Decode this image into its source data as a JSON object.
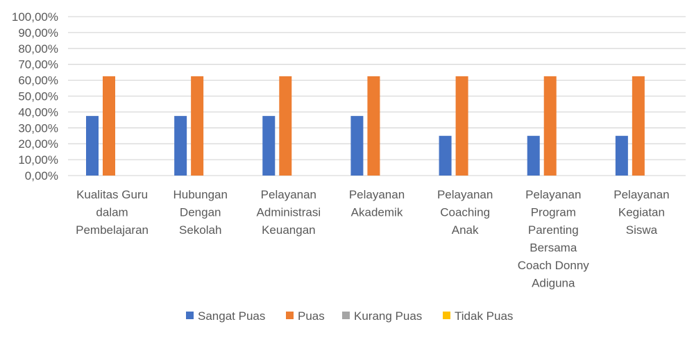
{
  "chart_data": {
    "type": "bar",
    "categories": [
      [
        "Kualitas Guru",
        "dalam",
        "Pembelajaran"
      ],
      [
        "Hubungan",
        "Dengan",
        "Sekolah"
      ],
      [
        "Pelayanan",
        "Administrasi",
        "Keuangan"
      ],
      [
        "Pelayanan",
        "Akademik"
      ],
      [
        "Pelayanan",
        "Coaching",
        "Anak"
      ],
      [
        "Pelayanan",
        "Program",
        "Parenting",
        "Bersama",
        "Coach Donny",
        "Adiguna"
      ],
      [
        "Pelayanan",
        "Kegiatan",
        "Siswa"
      ]
    ],
    "series": [
      {
        "name": "Sangat Puas",
        "color": "#4472C4",
        "values": [
          37.5,
          37.5,
          37.5,
          37.5,
          25,
          25,
          25
        ]
      },
      {
        "name": "Puas",
        "color": "#ED7D31",
        "values": [
          62.5,
          62.5,
          62.5,
          62.5,
          62.5,
          62.5,
          62.5
        ]
      },
      {
        "name": "Kurang Puas",
        "color": "#A5A5A5",
        "values": [
          0,
          0,
          0,
          0,
          0,
          0,
          0
        ]
      },
      {
        "name": "Tidak Puas",
        "color": "#FFC000",
        "values": [
          0,
          0,
          0,
          0,
          0,
          0,
          0
        ]
      }
    ],
    "ylim": [
      0,
      100
    ],
    "yticks": [
      "0,00%",
      "10,00%",
      "20,00%",
      "30,00%",
      "40,00%",
      "50,00%",
      "60,00%",
      "70,00%",
      "80,00%",
      "90,00%",
      "100,00%"
    ],
    "grid": true,
    "legend": "bottom"
  }
}
